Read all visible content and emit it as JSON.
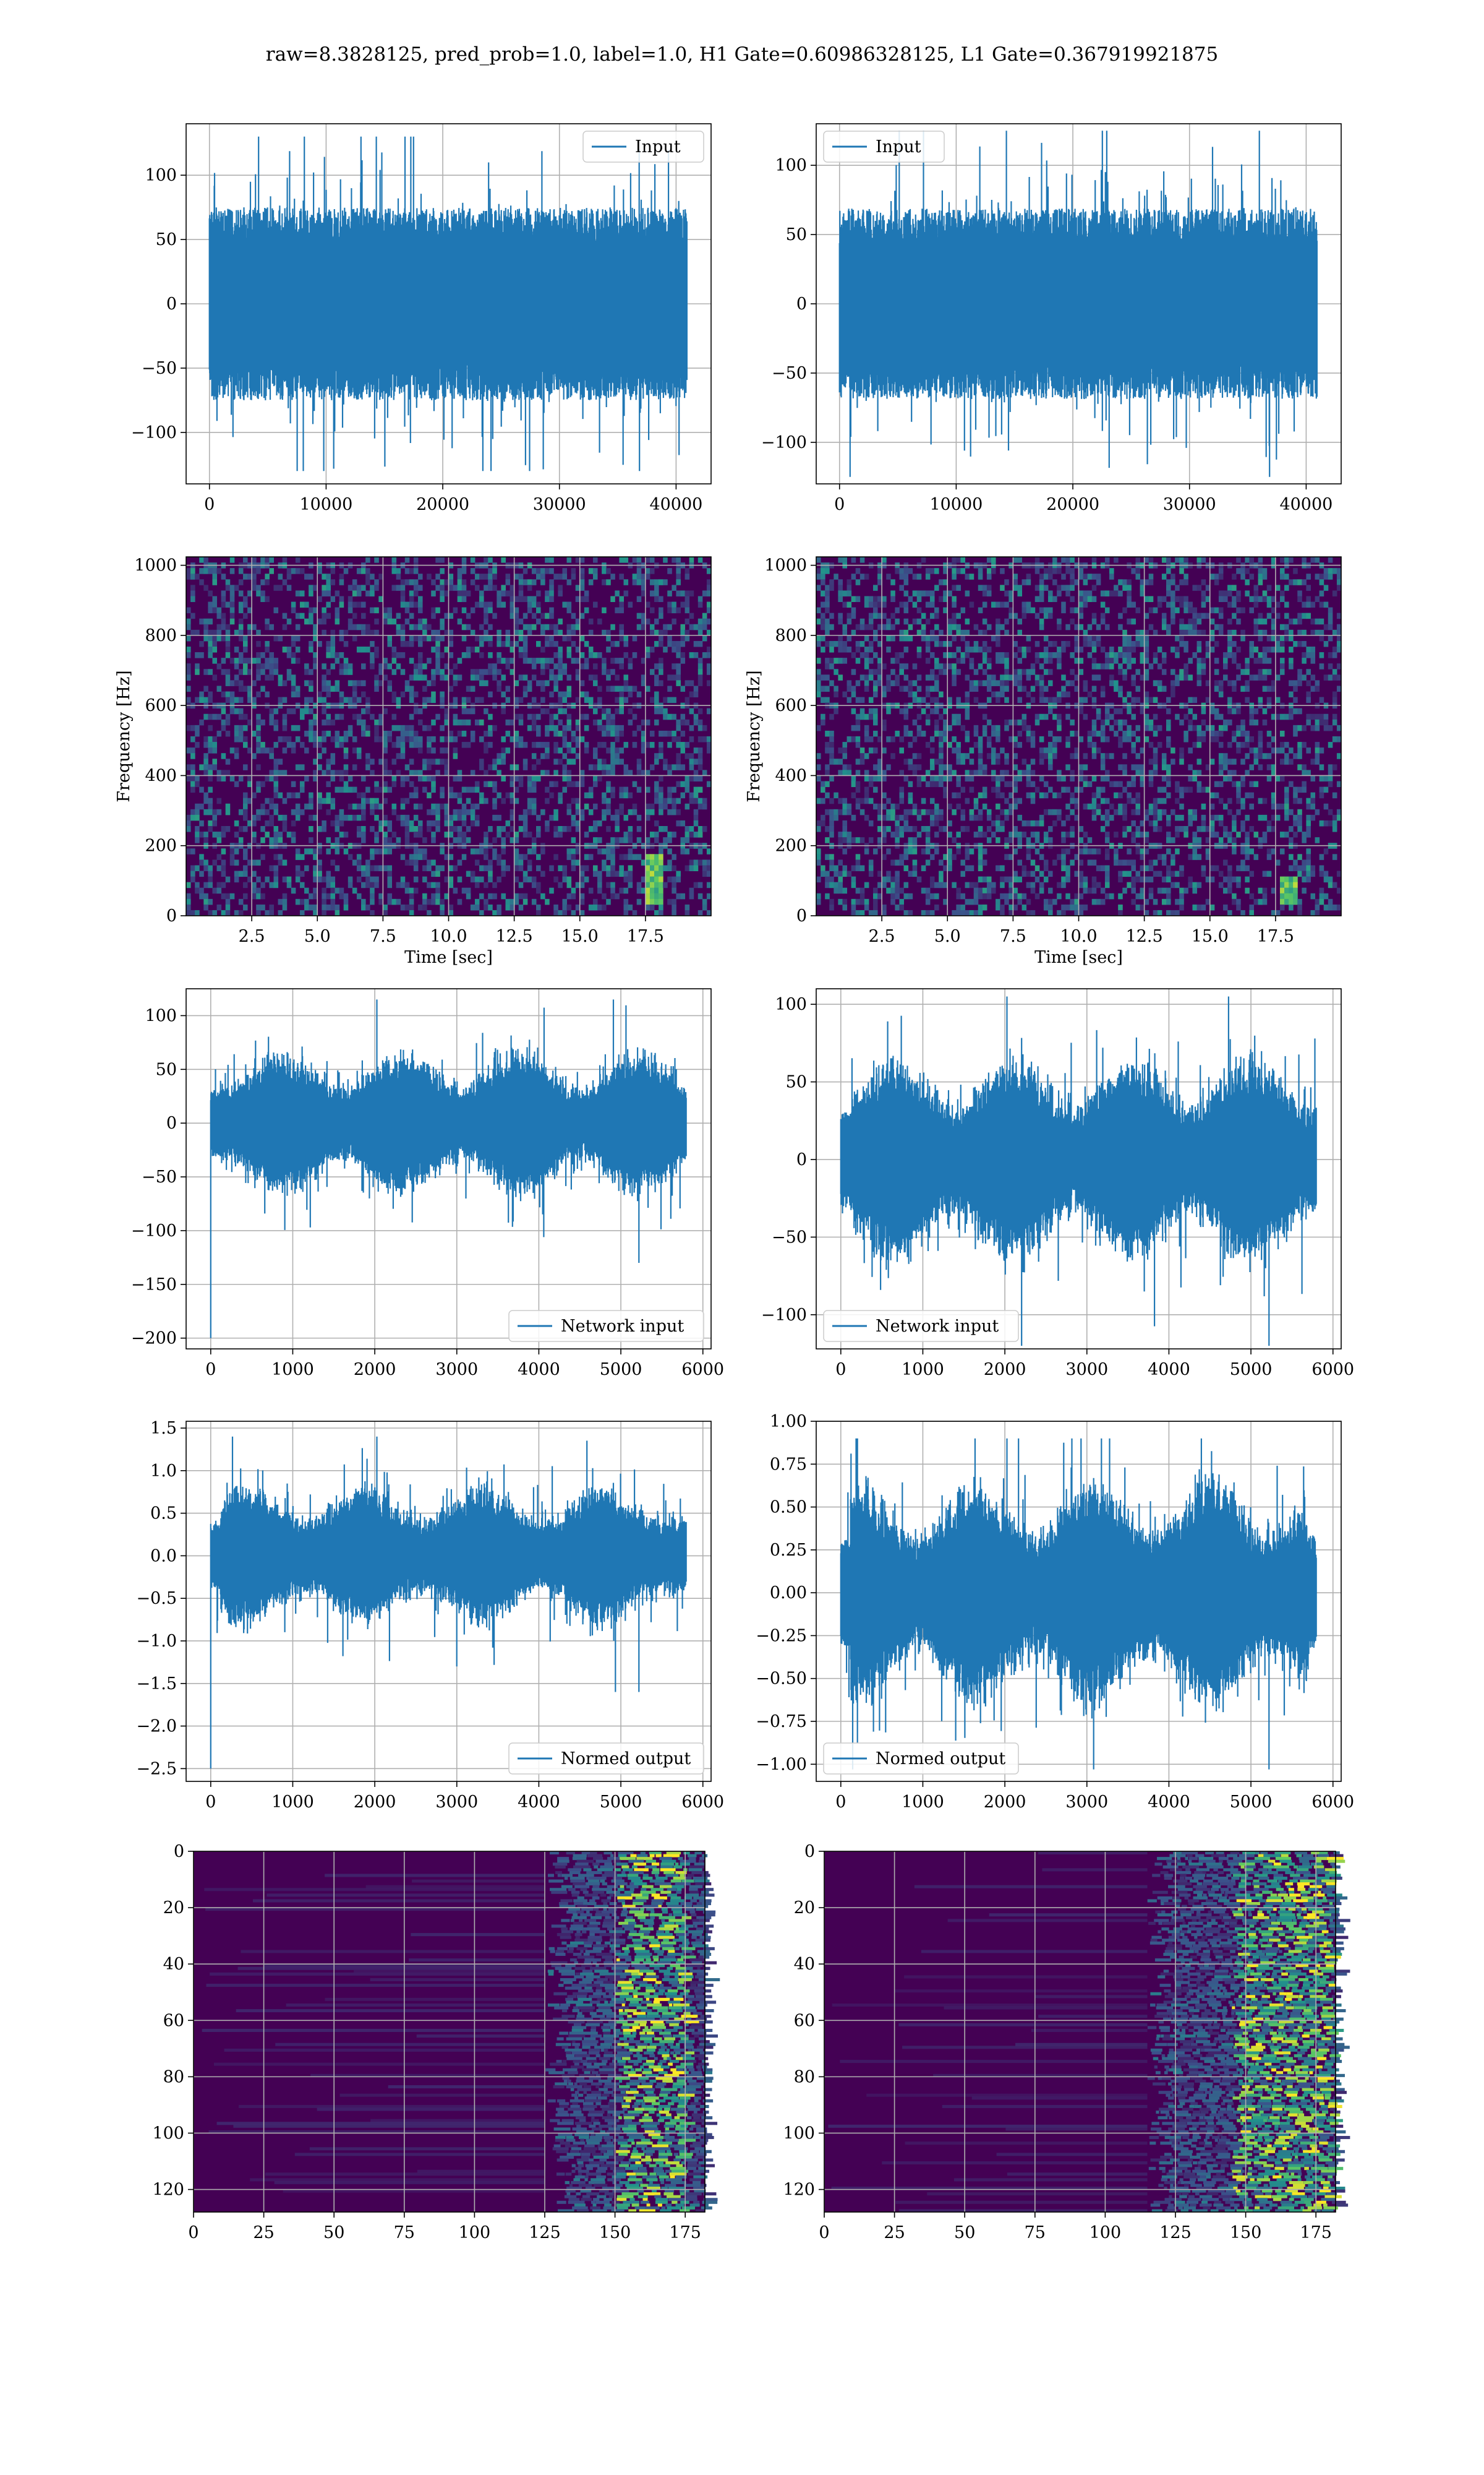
{
  "suptitle": "raw=8.3828125, pred_prob=1.0, label=1.0, H1 Gate=0.60986328125, L1 Gate=0.367919921875",
  "colors": {
    "line": "#1f77b4",
    "grid": "#b0b0b0",
    "viridis_dark": "#440154"
  },
  "chart_data": [
    {
      "id": "h1-input",
      "type": "line",
      "legend": "Input",
      "legend_loc": "upper right",
      "xlim": [
        -2000,
        43000
      ],
      "ylim": [
        -140,
        140
      ],
      "xticks": [
        0,
        10000,
        20000,
        30000,
        40000
      ],
      "yticks": [
        -100,
        -50,
        0,
        50,
        100
      ],
      "grid": true,
      "series": {
        "x_range": [
          0,
          40959
        ],
        "amplitude_approx": {
          "body": 60,
          "max": 130,
          "min": -130
        }
      }
    },
    {
      "id": "l1-input",
      "type": "line",
      "legend": "Input",
      "legend_loc": "upper left",
      "xlim": [
        -2000,
        43000
      ],
      "ylim": [
        -130,
        130
      ],
      "xticks": [
        0,
        10000,
        20000,
        30000,
        40000
      ],
      "yticks": [
        -100,
        -50,
        0,
        50,
        100
      ],
      "grid": true,
      "series": {
        "x_range": [
          0,
          40959
        ],
        "amplitude_approx": {
          "body": 55,
          "max": 125,
          "min": -125
        }
      }
    },
    {
      "id": "h1-spectrogram",
      "type": "heatmap",
      "colormap": "viridis",
      "xlabel": "Time [sec]",
      "ylabel": "Frequency [Hz]",
      "xlim": [
        0,
        20
      ],
      "ylim": [
        0,
        1024
      ],
      "xticks": [
        2.5,
        5.0,
        7.5,
        10.0,
        12.5,
        15.0,
        17.5
      ],
      "yticks": [
        0,
        200,
        400,
        600,
        800,
        1000
      ],
      "grid": true,
      "feature": {
        "time_sec": 17.8,
        "freq_hz": [
          30,
          180
        ]
      }
    },
    {
      "id": "l1-spectrogram",
      "type": "heatmap",
      "colormap": "viridis",
      "xlabel": "Time [sec]",
      "ylabel": "Frequency [Hz]",
      "xlim": [
        0,
        20
      ],
      "ylim": [
        0,
        1024
      ],
      "xticks": [
        2.5,
        5.0,
        7.5,
        10.0,
        12.5,
        15.0,
        17.5
      ],
      "yticks": [
        0,
        200,
        400,
        600,
        800,
        1000
      ],
      "grid": true,
      "feature": {
        "time_sec": 18.0,
        "freq_hz": [
          30,
          110
        ]
      }
    },
    {
      "id": "h1-network-input",
      "type": "line",
      "legend": "Network input",
      "legend_loc": "lower right",
      "xlim": [
        -300,
        6100
      ],
      "ylim": [
        -210,
        125
      ],
      "xticks": [
        0,
        1000,
        2000,
        3000,
        4000,
        5000,
        6000
      ],
      "yticks": [
        -200,
        -150,
        -100,
        -50,
        0,
        50,
        100
      ],
      "grid": true,
      "series": {
        "x_range": [
          0,
          5800
        ],
        "amplitude_approx": {
          "body": 45,
          "max": 115,
          "min": -130,
          "spike_at_0": -200
        }
      }
    },
    {
      "id": "l1-network-input",
      "type": "line",
      "legend": "Network input",
      "legend_loc": "lower left",
      "xlim": [
        -300,
        6100
      ],
      "ylim": [
        -122,
        110
      ],
      "xticks": [
        0,
        1000,
        2000,
        3000,
        4000,
        5000,
        6000
      ],
      "yticks": [
        -100,
        -50,
        0,
        50,
        100
      ],
      "grid": true,
      "series": {
        "x_range": [
          0,
          5800
        ],
        "amplitude_approx": {
          "body": 45,
          "max": 105,
          "min": -120
        }
      }
    },
    {
      "id": "h1-normed-output",
      "type": "line",
      "legend": "Normed output",
      "legend_loc": "lower right",
      "xlim": [
        -300,
        6100
      ],
      "ylim": [
        -2.65,
        1.58
      ],
      "xticks": [
        0,
        1000,
        2000,
        3000,
        4000,
        5000,
        6000
      ],
      "yticks": [
        -2.5,
        -2.0,
        -1.5,
        -1.0,
        -0.5,
        0.0,
        0.5,
        1.0,
        1.5
      ],
      "grid": true,
      "series": {
        "x_range": [
          0,
          5800
        ],
        "amplitude_approx": {
          "body": 0.55,
          "max": 1.4,
          "min": -1.6,
          "spike_at_0": -2.5
        }
      }
    },
    {
      "id": "l1-normed-output",
      "type": "line",
      "legend": "Normed output",
      "legend_loc": "lower left",
      "xlim": [
        -300,
        6100
      ],
      "ylim": [
        -1.1,
        1.0
      ],
      "xticks": [
        0,
        1000,
        2000,
        3000,
        4000,
        5000,
        6000
      ],
      "yticks": [
        -1.0,
        -0.75,
        -0.5,
        -0.25,
        0.0,
        0.25,
        0.5,
        0.75,
        1.0
      ],
      "grid": true,
      "series": {
        "x_range": [
          0,
          5800
        ],
        "amplitude_approx": {
          "body": 0.45,
          "max": 0.9,
          "min": -1.03
        }
      }
    },
    {
      "id": "h1-feature-map",
      "type": "heatmap",
      "colormap": "viridis",
      "xlim": [
        0,
        182
      ],
      "ylim": [
        128,
        0
      ],
      "xticks": [
        0,
        25,
        50,
        75,
        100,
        125,
        150,
        175
      ],
      "yticks": [
        0,
        20,
        40,
        60,
        80,
        100,
        120
      ],
      "grid": true,
      "active_columns": [
        125,
        182
      ],
      "hot_columns": [
        150,
        175
      ]
    },
    {
      "id": "l1-feature-map",
      "type": "heatmap",
      "colormap": "viridis",
      "xlim": [
        0,
        182
      ],
      "ylim": [
        128,
        0
      ],
      "xticks": [
        0,
        25,
        50,
        75,
        100,
        125,
        150,
        175
      ],
      "yticks": [
        0,
        20,
        40,
        60,
        80,
        100,
        120
      ],
      "grid": true,
      "active_columns": [
        115,
        182
      ],
      "hot_columns": [
        145,
        180
      ]
    }
  ]
}
